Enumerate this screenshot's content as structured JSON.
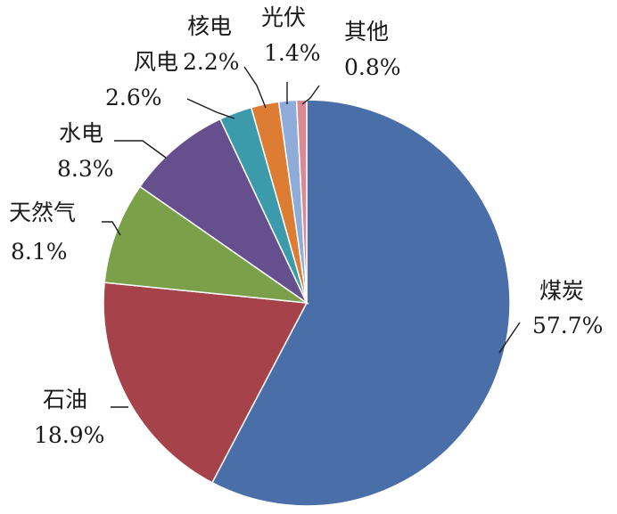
{
  "chart_data": {
    "type": "pie",
    "slices": [
      {
        "name": "煤炭",
        "value": 57.7,
        "label": "57.7%",
        "color": "#4a6ea8"
      },
      {
        "name": "石油",
        "value": 18.9,
        "label": "18.9%",
        "color": "#a6424a"
      },
      {
        "name": "天然气",
        "value": 8.1,
        "label": "8.1%",
        "color": "#7aa04a"
      },
      {
        "name": "水电",
        "value": 8.3,
        "label": "8.3%",
        "color": "#654f8c"
      },
      {
        "name": "风电",
        "value": 2.6,
        "label": "2.6%",
        "color": "#3b9bab"
      },
      {
        "name": "核电",
        "value": 2.2,
        "label": "2.2%",
        "color": "#dd7d33"
      },
      {
        "name": "光伏",
        "value": 1.4,
        "label": "1.4%",
        "color": "#8eabd9"
      },
      {
        "name": "其他",
        "value": 0.8,
        "label": "0.8%",
        "color": "#d98a95"
      }
    ],
    "start": "12 o'clock",
    "direction": "clockwise",
    "legend": "none"
  }
}
